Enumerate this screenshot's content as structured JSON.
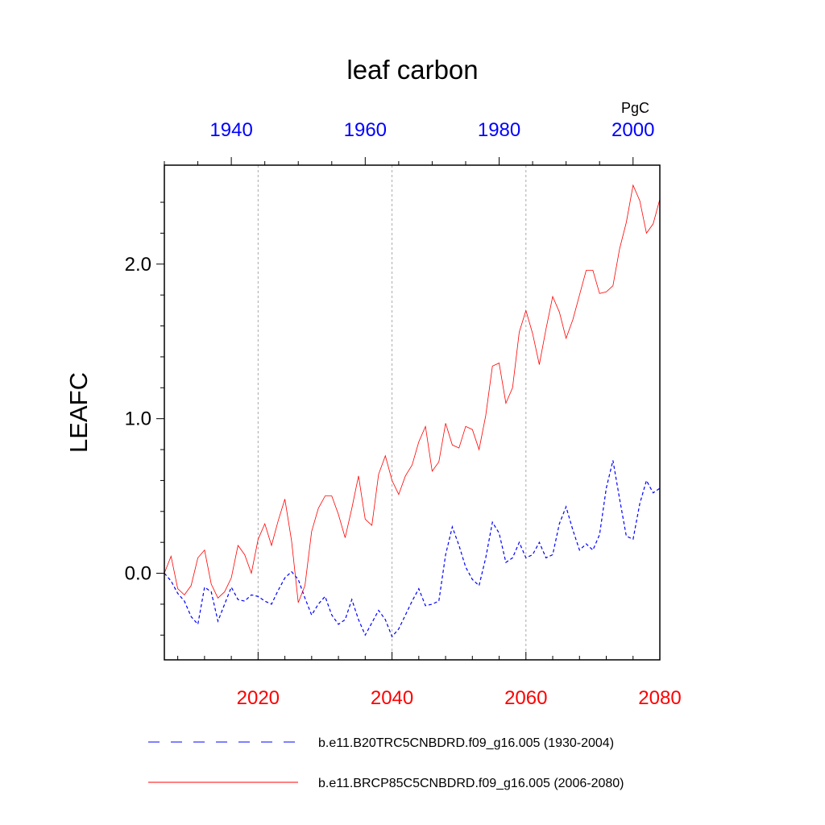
{
  "chart_data": {
    "type": "line",
    "title": "leaf carbon",
    "units": "PgC",
    "ylabel": "LEAFC",
    "ylim": [
      -0.56,
      2.64
    ],
    "y_ticks": [
      {
        "value": 0.0,
        "label": "0.0"
      },
      {
        "value": 1.0,
        "label": "1.0"
      },
      {
        "value": 2.0,
        "label": "2.0"
      }
    ],
    "x_bottom": {
      "range": [
        2006,
        2080
      ],
      "ticks": [
        {
          "value": 2020,
          "label": "2020"
        },
        {
          "value": 2040,
          "label": "2040"
        },
        {
          "value": 2060,
          "label": "2060"
        },
        {
          "value": 2080,
          "label": "2080"
        }
      ],
      "color": "#ff0000"
    },
    "x_top": {
      "range": [
        1930,
        2004
      ],
      "ticks": [
        {
          "value": 1940,
          "label": "1940"
        },
        {
          "value": 1960,
          "label": "1960"
        },
        {
          "value": 1980,
          "label": "1980"
        },
        {
          "value": 2000,
          "label": "2000"
        }
      ],
      "color": "#0000ff"
    },
    "gridlines_x": [
      2020,
      2040,
      2060
    ],
    "series": [
      {
        "name": "b.e11.B20TRC5CNBDRD.f09_g16.005 (1930-2004)",
        "axis": "top",
        "color": "#0000ff",
        "dash": "dashed",
        "x_start": 1930,
        "values": [
          0.0,
          -0.05,
          -0.13,
          -0.18,
          -0.28,
          -0.33,
          -0.09,
          -0.12,
          -0.31,
          -0.2,
          -0.09,
          -0.17,
          -0.18,
          -0.14,
          -0.15,
          -0.18,
          -0.2,
          -0.11,
          -0.03,
          0.01,
          -0.04,
          -0.16,
          -0.27,
          -0.2,
          -0.15,
          -0.27,
          -0.33,
          -0.3,
          -0.17,
          -0.3,
          -0.4,
          -0.32,
          -0.24,
          -0.3,
          -0.41,
          -0.36,
          -0.27,
          -0.18,
          -0.1,
          -0.21,
          -0.2,
          -0.18,
          0.12,
          0.3,
          0.18,
          0.04,
          -0.04,
          -0.08,
          0.1,
          0.33,
          0.26,
          0.07,
          0.1,
          0.2,
          0.1,
          0.12,
          0.2,
          0.1,
          0.12,
          0.32,
          0.43,
          0.28,
          0.15,
          0.19,
          0.15,
          0.25,
          0.55,
          0.73,
          0.48,
          0.24,
          0.22,
          0.45,
          0.6,
          0.52,
          0.55
        ]
      },
      {
        "name": "b.e11.BRCP85C5CNBDRD.f09_g16.005 (2006-2080)",
        "axis": "bottom",
        "color": "#ff0000",
        "dash": "solid",
        "x_start": 2006,
        "values": [
          0.0,
          0.11,
          -0.1,
          -0.14,
          -0.08,
          0.1,
          0.15,
          -0.07,
          -0.16,
          -0.12,
          -0.03,
          0.18,
          0.12,
          0.0,
          0.22,
          0.32,
          0.18,
          0.34,
          0.48,
          0.21,
          -0.19,
          -0.08,
          0.27,
          0.42,
          0.5,
          0.5,
          0.38,
          0.23,
          0.42,
          0.63,
          0.35,
          0.31,
          0.64,
          0.76,
          0.6,
          0.51,
          0.63,
          0.7,
          0.85,
          0.95,
          0.66,
          0.72,
          0.97,
          0.83,
          0.81,
          0.95,
          0.93,
          0.8,
          1.02,
          1.34,
          1.36,
          1.1,
          1.2,
          1.56,
          1.7,
          1.55,
          1.35,
          1.58,
          1.79,
          1.69,
          1.52,
          1.64,
          1.8,
          1.96,
          1.96,
          1.81,
          1.82,
          1.86,
          2.1,
          2.27,
          2.51,
          2.41,
          2.2,
          2.26,
          2.42
        ]
      }
    ]
  }
}
